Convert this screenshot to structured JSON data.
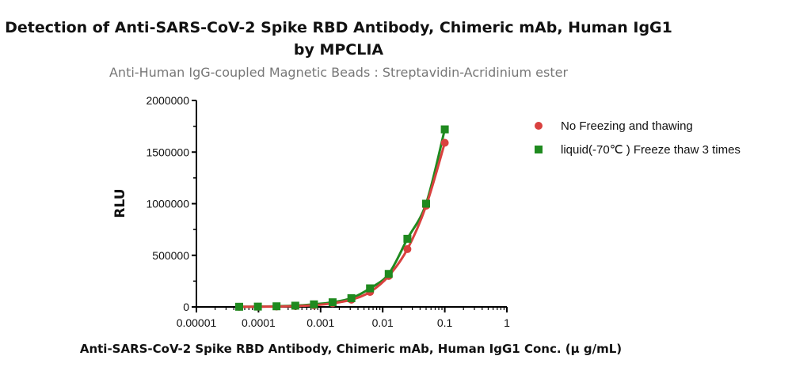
{
  "chart_data": {
    "type": "scatter",
    "title": "Detection of Anti-SARS-CoV-2 Spike RBD Antibody, Chimeric mAb, Human IgG1",
    "title_line2": "by MPCLIA",
    "subtitle": "Anti-Human IgG-coupled Magnetic Beads : Streptavidin-Acridinium ester",
    "xlabel": "Anti-SARS-CoV-2 Spike RBD Antibody, Chimeric mAb, Human IgG1 Conc. (μ g/mL)",
    "ylabel": "RLU",
    "x_scale": "log",
    "xlim": [
      1e-05,
      1
    ],
    "ylim": [
      0,
      2000000
    ],
    "x_ticks": [
      "0.00001",
      "0.0001",
      "0.001",
      "0.01",
      "0.1",
      "1"
    ],
    "y_ticks": [
      "0",
      "500000",
      "1000000",
      "1500000",
      "2000000"
    ],
    "legend_position": "right",
    "series": [
      {
        "name": "No Freezing and thawing",
        "marker": "circle",
        "color": "#d9413f",
        "x": [
          4.88e-05,
          9.77e-05,
          0.000195,
          0.000391,
          0.000781,
          0.00156,
          0.00313,
          0.00625,
          0.0125,
          0.025,
          0.05,
          0.1
        ],
        "y": [
          1000,
          2000,
          4000,
          8000,
          16000,
          35000,
          70000,
          145000,
          300000,
          560000,
          980000,
          1590000
        ]
      },
      {
        "name": "liquid(-70℃ ) Freeze thaw 3 times",
        "marker": "square",
        "color": "#1f8a1f",
        "x": [
          4.88e-05,
          9.77e-05,
          0.000195,
          0.000391,
          0.000781,
          0.00156,
          0.00313,
          0.00625,
          0.0125,
          0.025,
          0.05,
          0.1
        ],
        "y": [
          1500,
          3000,
          6000,
          12000,
          25000,
          45000,
          85000,
          180000,
          320000,
          660000,
          1000000,
          1720000
        ]
      }
    ]
  }
}
